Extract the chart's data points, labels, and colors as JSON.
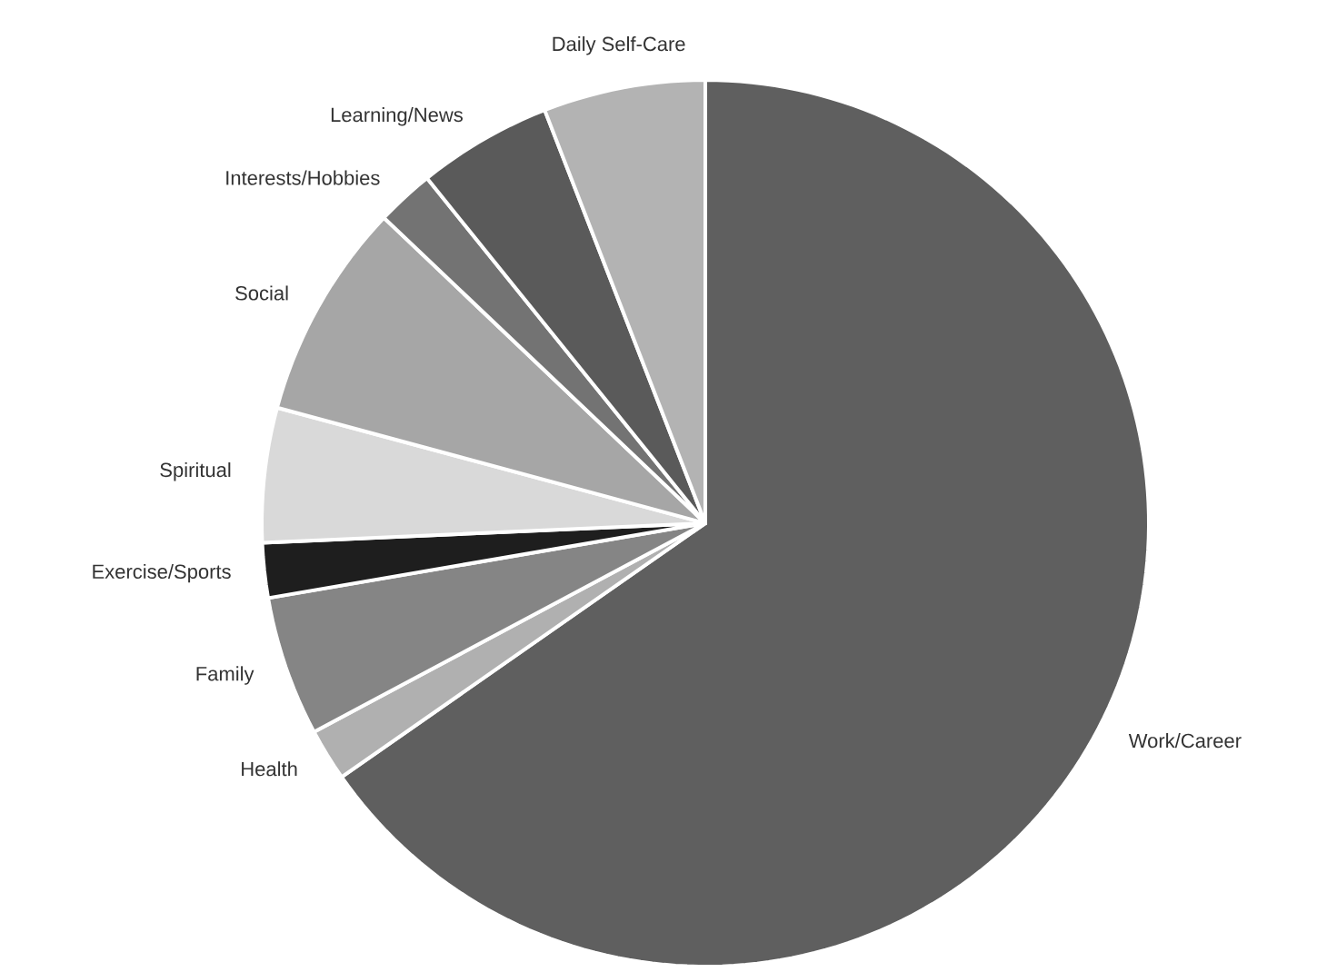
{
  "chart_data": {
    "type": "pie",
    "categories": [
      "Work/Career",
      "Health",
      "Family",
      "Exercise/Sports",
      "Spiritual",
      "Social",
      "Interests/Hobbies",
      "Learning/News",
      "Daily Self-Care"
    ],
    "values": [
      65.3,
      1.9,
      5.1,
      2.0,
      4.9,
      7.9,
      2.1,
      4.9,
      5.9
    ],
    "colors": [
      "#5f5f5f",
      "#b0b0b0",
      "#858585",
      "#1e1e1e",
      "#d9d9d9",
      "#a6a6a6",
      "#737373",
      "#5a5a5a",
      "#b3b3b3"
    ]
  }
}
